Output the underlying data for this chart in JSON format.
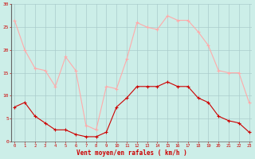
{
  "hours": [
    0,
    1,
    2,
    3,
    4,
    5,
    6,
    7,
    8,
    9,
    10,
    11,
    12,
    13,
    14,
    15,
    16,
    17,
    18,
    19,
    20,
    21,
    22,
    23
  ],
  "wind_avg": [
    7.5,
    8.5,
    5.5,
    4.0,
    2.5,
    2.5,
    1.5,
    1.0,
    1.0,
    2.0,
    7.5,
    9.5,
    12.0,
    12.0,
    12.0,
    13.0,
    12.0,
    12.0,
    9.5,
    8.5,
    5.5,
    4.5,
    4.0,
    2.0
  ],
  "wind_gust": [
    26.5,
    20.0,
    16.0,
    15.5,
    12.0,
    18.5,
    15.5,
    3.5,
    2.5,
    12.0,
    11.5,
    18.0,
    26.0,
    25.0,
    24.5,
    27.5,
    26.5,
    26.5,
    24.0,
    21.0,
    15.5,
    15.0,
    15.0,
    8.5
  ],
  "avg_color": "#cc0000",
  "gust_color": "#ffaaaa",
  "background_color": "#cceee8",
  "grid_color": "#aacccc",
  "xlabel": "Vent moyen/en rafales ( km/h )",
  "xlabel_color": "#cc0000",
  "tick_color": "#cc0000",
  "ylim": [
    0,
    30
  ],
  "yticks": [
    0,
    5,
    10,
    15,
    20,
    25,
    30
  ]
}
